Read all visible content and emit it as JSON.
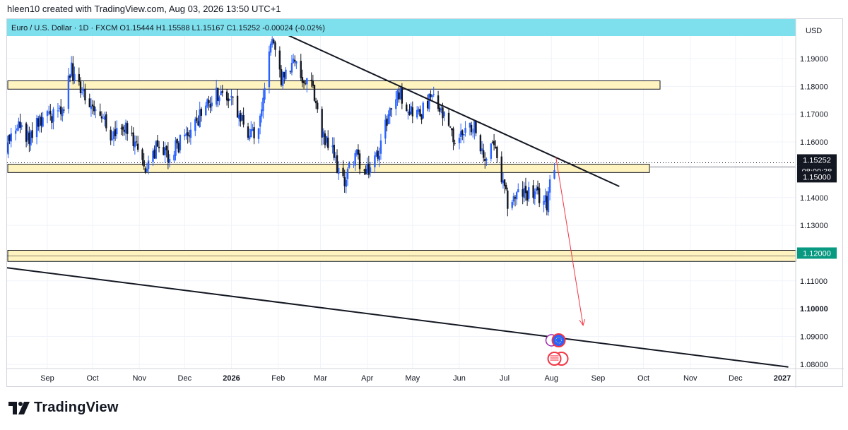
{
  "header": {
    "attribution": "hleen10 created with TradingView.com, Aug 03, 2026 13:50 UTC+1",
    "legend": "Euro / U.S. Dollar · 1D · FXCM  O1.15444  H1.15588  L1.15167  C1.15252  -0.00024 (-0.02%)"
  },
  "brand": {
    "name": "TradingView"
  },
  "colors": {
    "up": "#2962ff",
    "down": "#131722",
    "zone_fill": "#fff3bf",
    "band": "#7ee0ec",
    "arrow": "#f23645",
    "highlight_label": "#089981"
  },
  "chart_data": {
    "type": "candlestick",
    "symbol": "EURUSD",
    "timeframe": "1D",
    "currency": "USD",
    "ylim": [
      1.075,
      1.205
    ],
    "y_ticks": [
      "1.19000",
      "1.18000",
      "1.17000",
      "1.16000",
      "1.14000",
      "1.13000",
      "1.11000",
      "1.10000",
      "1.09000",
      "1.08000"
    ],
    "x_ticks": [
      "Sep",
      "Oct",
      "Nov",
      "Dec",
      "2026",
      "Feb",
      "Mar",
      "Apr",
      "May",
      "Jun",
      "Jul",
      "Aug",
      "Sep",
      "Oct",
      "Nov",
      "Dec",
      "2027"
    ],
    "x_tick_dates": [
      "2025-09-01",
      "2025-10-01",
      "2025-11-01",
      "2025-12-01",
      "2026-01-01",
      "2026-02-01",
      "2026-03-01",
      "2026-04-01",
      "2026-05-01",
      "2026-06-01",
      "2026-07-01",
      "2026-08-01",
      "2026-09-01",
      "2026-10-01",
      "2026-11-01",
      "2026-12-01",
      "2027-01-01"
    ],
    "price_labels": {
      "last_price": "1.15252",
      "countdown": "08:09:38",
      "support": "1.15000",
      "target": "1.12000"
    },
    "close_path": [
      [
        "2025-08-04",
        1.157
      ],
      [
        "2025-08-12",
        1.166
      ],
      [
        "2025-08-20",
        1.162
      ],
      [
        "2025-08-28",
        1.168
      ],
      [
        "2025-09-05",
        1.17
      ],
      [
        "2025-09-12",
        1.174
      ],
      [
        "2025-09-17",
        1.186
      ],
      [
        "2025-09-23",
        1.178
      ],
      [
        "2025-09-30",
        1.174
      ],
      [
        "2025-10-07",
        1.168
      ],
      [
        "2025-10-14",
        1.162
      ],
      [
        "2025-10-20",
        1.166
      ],
      [
        "2025-10-27",
        1.162
      ],
      [
        "2025-11-04",
        1.151
      ],
      [
        "2025-11-12",
        1.158
      ],
      [
        "2025-11-20",
        1.154
      ],
      [
        "2025-11-28",
        1.16
      ],
      [
        "2025-12-08",
        1.166
      ],
      [
        "2025-12-16",
        1.174
      ],
      [
        "2025-12-24",
        1.178
      ],
      [
        "2026-01-02",
        1.174
      ],
      [
        "2026-01-10",
        1.165
      ],
      [
        "2026-01-19",
        1.162
      ],
      [
        "2026-01-27",
        1.198
      ],
      [
        "2026-02-03",
        1.182
      ],
      [
        "2026-02-10",
        1.188
      ],
      [
        "2026-02-17",
        1.184
      ],
      [
        "2026-02-24",
        1.18
      ],
      [
        "2026-03-02",
        1.162
      ],
      [
        "2026-03-09",
        1.156
      ],
      [
        "2026-03-16",
        1.145
      ],
      [
        "2026-03-24",
        1.156
      ],
      [
        "2026-03-31",
        1.148
      ],
      [
        "2026-04-08",
        1.156
      ],
      [
        "2026-04-15",
        1.17
      ],
      [
        "2026-04-22",
        1.178
      ],
      [
        "2026-04-29",
        1.172
      ],
      [
        "2026-05-06",
        1.17
      ],
      [
        "2026-05-14",
        1.176
      ],
      [
        "2026-05-22",
        1.168
      ],
      [
        "2026-05-29",
        1.16
      ],
      [
        "2026-06-05",
        1.165
      ],
      [
        "2026-06-12",
        1.166
      ],
      [
        "2026-06-17",
        1.152
      ],
      [
        "2026-06-23",
        1.161
      ],
      [
        "2026-06-28",
        1.148
      ],
      [
        "2026-07-03",
        1.138
      ],
      [
        "2026-07-10",
        1.141
      ],
      [
        "2026-07-17",
        1.142
      ],
      [
        "2026-07-24",
        1.14
      ],
      [
        "2026-07-29",
        1.138
      ],
      [
        "2026-08-01",
        1.152
      ],
      [
        "2026-08-03",
        1.15252
      ]
    ],
    "zones": [
      {
        "from": "2025-08-01",
        "to": "2026-10-12",
        "low": 1.179,
        "high": 1.182
      },
      {
        "from": "2025-08-01",
        "to": "2026-10-05",
        "low": 1.149,
        "high": 1.152
      },
      {
        "from": "2025-08-01",
        "to": "2027-01-10",
        "low": 1.117,
        "high": 1.121
      }
    ],
    "trendlines": [
      {
        "from": [
          "2026-01-20",
          1.203
        ],
        "to": [
          "2026-09-15",
          1.144
        ]
      },
      {
        "from": [
          "2025-08-01",
          1.115
        ],
        "to": [
          "2027-01-05",
          1.079
        ]
      }
    ],
    "projection_arrow": {
      "from": [
        "2026-08-04",
        1.1545
      ],
      "to": [
        "2026-08-22",
        1.094
      ]
    }
  }
}
